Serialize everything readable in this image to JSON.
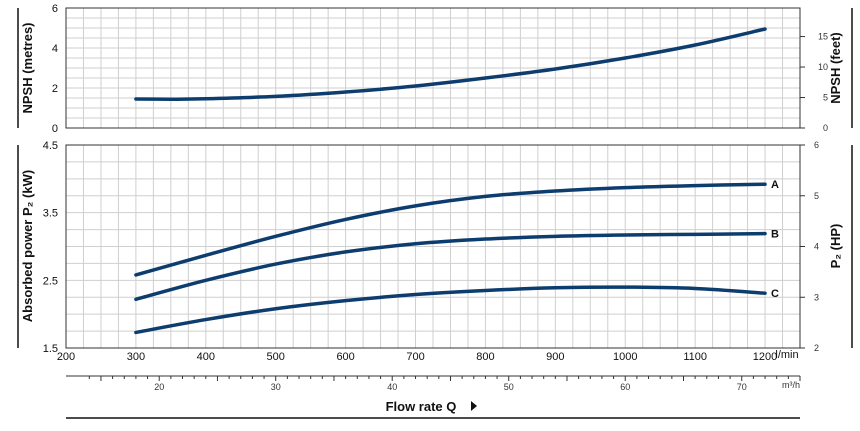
{
  "chart_data": [
    {
      "type": "line",
      "ylabel": "NPSH (metres)",
      "ylabel_right": "NPSH (feet)",
      "ylim": [
        0,
        6
      ],
      "yticks": [
        "0",
        "2",
        "4",
        "6"
      ],
      "ylim_right": [
        0,
        19.685
      ],
      "yticks_right": [
        "0",
        "5",
        "10",
        "15"
      ],
      "xlim": [
        200,
        1250
      ],
      "grid": true,
      "series": [
        {
          "x": [
            300,
            350,
            400,
            500,
            600,
            700,
            800,
            900,
            1000,
            1100,
            1200
          ],
          "values": [
            1.45,
            1.44,
            1.46,
            1.58,
            1.8,
            2.1,
            2.5,
            2.95,
            3.5,
            4.15,
            4.95
          ]
        }
      ]
    },
    {
      "type": "line",
      "ylabel": "Absorbed power P₂ (kW)",
      "ylabel_right": "P₂ (HP)",
      "ylim": [
        1.5,
        4.5
      ],
      "yticks": [
        "1.5",
        "2.5",
        "3.5",
        "4.5"
      ],
      "ylim_right": [
        2,
        6
      ],
      "yticks_right": [
        "2",
        "3",
        "4",
        "5",
        "6"
      ],
      "xlim": [
        200,
        1250
      ],
      "xticks": [
        "200",
        "300",
        "400",
        "500",
        "600",
        "700",
        "800",
        "900",
        "1000",
        "1100",
        "1200"
      ],
      "xunit": "l/min",
      "grid": true,
      "series": [
        {
          "name": "A",
          "x": [
            300,
            400,
            500,
            600,
            700,
            800,
            900,
            1000,
            1100,
            1200
          ],
          "values": [
            2.58,
            2.87,
            3.15,
            3.4,
            3.6,
            3.74,
            3.82,
            3.87,
            3.9,
            3.92
          ]
        },
        {
          "name": "B",
          "x": [
            300,
            400,
            500,
            600,
            700,
            800,
            900,
            1000,
            1100,
            1200
          ],
          "values": [
            2.22,
            2.5,
            2.74,
            2.92,
            3.04,
            3.11,
            3.15,
            3.17,
            3.18,
            3.19
          ]
        },
        {
          "name": "C",
          "x": [
            300,
            400,
            500,
            600,
            700,
            800,
            900,
            1000,
            1100,
            1200
          ],
          "values": [
            1.73,
            1.92,
            2.08,
            2.2,
            2.29,
            2.35,
            2.39,
            2.4,
            2.38,
            2.31
          ]
        }
      ]
    },
    {
      "type": "line",
      "axis": "secondary-x",
      "xticks": [
        "20",
        "30",
        "40",
        "50",
        "60",
        "70"
      ],
      "xunit": "m³/h",
      "xlabel": "Flow rate Q"
    }
  ]
}
